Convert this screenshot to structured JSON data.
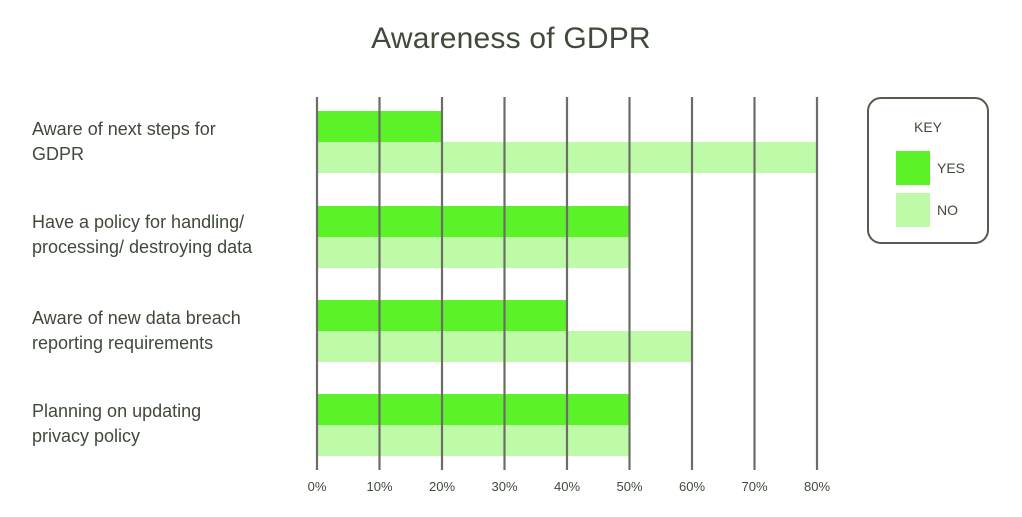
{
  "chart_data": {
    "type": "bar",
    "orientation": "horizontal",
    "title": "Awareness of GDPR",
    "categories": [
      "Aware of next steps for GDPR",
      "Have a policy for handling/ processing/ destroying data",
      "Aware of new data breach reporting requirements",
      "Planning on updating privacy policy"
    ],
    "category_lines": [
      [
        "Aware of next steps for",
        "GDPR"
      ],
      [
        "Have a policy for handling/",
        "processing/ destroying data"
      ],
      [
        "Aware of new data breach",
        "reporting requirements"
      ],
      [
        "Planning on updating",
        "privacy policy"
      ]
    ],
    "series": [
      {
        "name": "YES",
        "color": "#5cf22a",
        "values": [
          20,
          50,
          40,
          50
        ]
      },
      {
        "name": "NO",
        "color": "#bdfba8",
        "values": [
          80,
          50,
          60,
          50
        ]
      }
    ],
    "xlim": [
      0,
      80
    ],
    "x_ticks": [
      "0%",
      "10%",
      "20%",
      "30%",
      "40%",
      "50%",
      "60%",
      "70%",
      "80%"
    ],
    "grid": "vertical",
    "legend": {
      "title": "KEY",
      "position": "right"
    }
  },
  "colors": {
    "text": "#3f4a3a",
    "grid": "#6d6d66",
    "yes": "#5cf22a",
    "no": "#bdfba8"
  }
}
